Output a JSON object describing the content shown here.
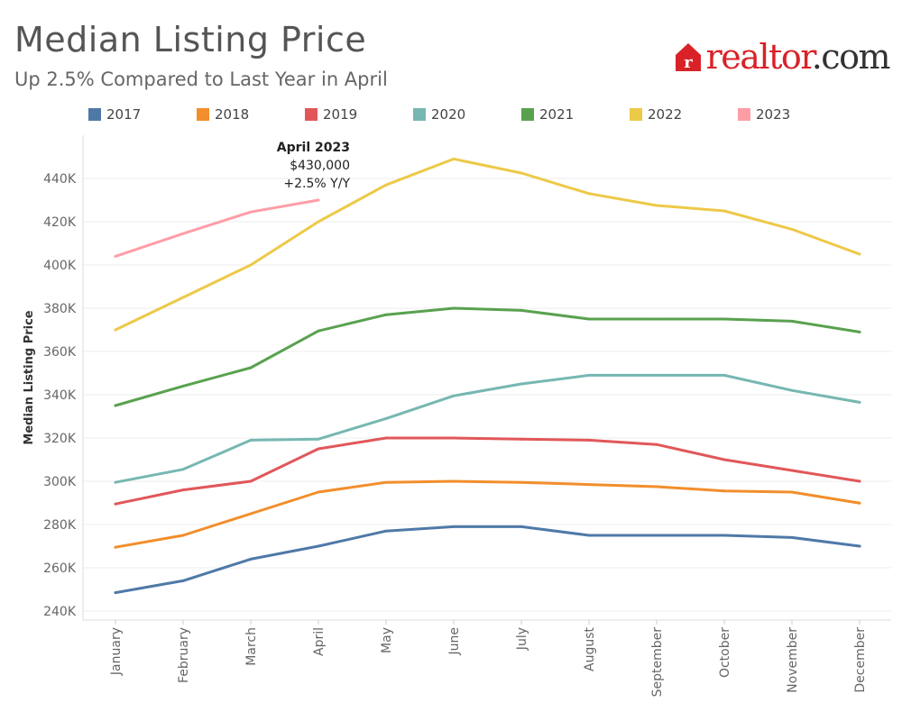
{
  "header": {
    "title": "Median Listing Price",
    "subtitle": "Up 2.5% Compared to Last Year in April"
  },
  "logo": {
    "brand_part": "realtor",
    "suffix": ".com",
    "mark_letter": "r",
    "brand_color": "#d92228"
  },
  "annotation": {
    "title": "April 2023",
    "value": "$430,000",
    "change": "+2.5% Y/Y"
  },
  "chart_data": {
    "type": "line",
    "title": "Median Listing Price",
    "subtitle": "Up 2.5% Compared to Last Year in April",
    "ylabel": "Median Listing Price",
    "xlabel": "",
    "ylim": [
      240000,
      450000
    ],
    "y_ticks": [
      240000,
      260000,
      280000,
      300000,
      320000,
      340000,
      360000,
      380000,
      400000,
      420000,
      440000
    ],
    "y_tick_labels": [
      "240K",
      "260K",
      "280K",
      "300K",
      "320K",
      "340K",
      "360K",
      "380K",
      "400K",
      "420K",
      "440K"
    ],
    "grid": true,
    "legend_position": "top",
    "categories": [
      "January",
      "February",
      "March",
      "April",
      "May",
      "June",
      "July",
      "August",
      "September",
      "October",
      "November",
      "December"
    ],
    "series": [
      {
        "name": "2017",
        "color": "#4e79a7",
        "values": [
          248500,
          254000,
          264000,
          270000,
          277000,
          279000,
          279000,
          275000,
          275000,
          275000,
          274000,
          270000
        ]
      },
      {
        "name": "2018",
        "color": "#f28e2b",
        "values": [
          269500,
          275000,
          285000,
          295000,
          299500,
          300000,
          299500,
          298500,
          297500,
          295500,
          295000,
          289900
        ]
      },
      {
        "name": "2019",
        "color": "#e15759",
        "values": [
          289500,
          296000,
          300000,
          315000,
          320000,
          320000,
          319500,
          319000,
          317000,
          310000,
          305000,
          300000
        ]
      },
      {
        "name": "2020",
        "color": "#76b7b2",
        "values": [
          299500,
          305500,
          319000,
          319500,
          329000,
          339500,
          345000,
          349000,
          349000,
          349000,
          342000,
          336500
        ]
      },
      {
        "name": "2021",
        "color": "#59a14f",
        "values": [
          335000,
          344000,
          352500,
          369500,
          377000,
          380000,
          379000,
          375000,
          375000,
          375000,
          374000,
          369000
        ]
      },
      {
        "name": "2022",
        "color": "#edc948",
        "values": [
          370000,
          385000,
          400000,
          420000,
          437000,
          449000,
          442500,
          433000,
          427500,
          425000,
          416500,
          405000
        ]
      },
      {
        "name": "2023",
        "color": "#ff9da7",
        "values": [
          404000,
          414500,
          424500,
          430000,
          null,
          null,
          null,
          null,
          null,
          null,
          null,
          null
        ]
      }
    ]
  }
}
